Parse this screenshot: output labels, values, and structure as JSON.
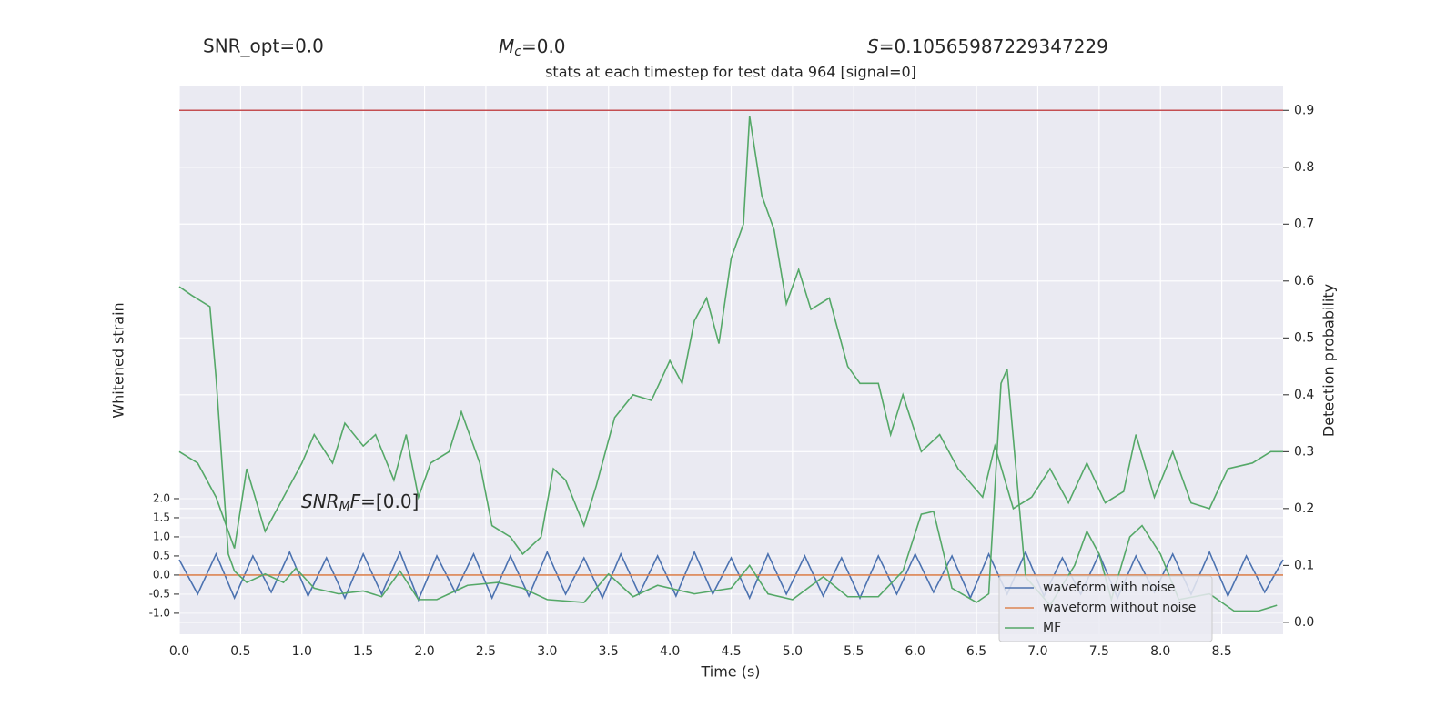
{
  "chart_data": {
    "type": "line",
    "annotations": {
      "snr_opt": {
        "text": "SNR_opt=0.0"
      },
      "mc": {
        "symbol": "M",
        "subscript": "c",
        "text": "=0.0"
      },
      "s": {
        "symbol": "S",
        "text": "=0.10565987229347229"
      },
      "snr_mf": {
        "symbol": "SNR",
        "subscript": "M",
        "symbol2": "F",
        "text": "=[0.0]"
      }
    },
    "title": "stats at each timestep for test data 964 [signal=0]",
    "xlabel": "Time (s)",
    "ylabel": "Whitened strain",
    "y2label": "Detection probability",
    "xlim": [
      0,
      9.0
    ],
    "xticks": [
      {
        "value": 0,
        "label": "0.0"
      },
      {
        "value": 0.5,
        "label": "0.5"
      },
      {
        "value": 1,
        "label": "1.0"
      },
      {
        "value": 1.5,
        "label": "1.5"
      },
      {
        "value": 2,
        "label": "2.0"
      },
      {
        "value": 2.5,
        "label": "2.5"
      },
      {
        "value": 3,
        "label": "3.0"
      },
      {
        "value": 3.5,
        "label": "3.5"
      },
      {
        "value": 4,
        "label": "4.0"
      },
      {
        "value": 4.5,
        "label": "4.5"
      },
      {
        "value": 5,
        "label": "5.0"
      },
      {
        "value": 5.5,
        "label": "5.5"
      },
      {
        "value": 6,
        "label": "6.0"
      },
      {
        "value": 6.5,
        "label": "6.5"
      },
      {
        "value": 7,
        "label": "7.0"
      },
      {
        "value": 7.5,
        "label": "7.5"
      },
      {
        "value": 8,
        "label": "8.0"
      },
      {
        "value": 8.5,
        "label": "8.5"
      }
    ],
    "ylim": [
      -1.55,
      12.79
    ],
    "yticks": [
      {
        "value": -1,
        "label": "-1.0"
      },
      {
        "value": -0.5,
        "label": "-0.5"
      },
      {
        "value": 0,
        "label": "0.0"
      },
      {
        "value": 0.5,
        "label": "0.5"
      },
      {
        "value": 1,
        "label": "1.0"
      },
      {
        "value": 1.5,
        "label": "1.5"
      },
      {
        "value": 2,
        "label": "2.0"
      }
    ],
    "y2lim": [
      -0.021,
      0.942
    ],
    "y2ticks": [
      {
        "value": 0,
        "label": "0.0"
      },
      {
        "value": 0.1,
        "label": "0.1"
      },
      {
        "value": 0.2,
        "label": "0.2"
      },
      {
        "value": 0.3,
        "label": "0.3"
      },
      {
        "value": 0.4,
        "label": "0.4"
      },
      {
        "value": 0.5,
        "label": "0.5"
      },
      {
        "value": 0.6,
        "label": "0.6"
      },
      {
        "value": 0.7,
        "label": "0.7"
      },
      {
        "value": 0.8,
        "label": "0.8"
      },
      {
        "value": 0.9,
        "label": "0.9"
      }
    ],
    "grid": true,
    "legend": "lower right",
    "series": [
      {
        "name": "waveform with noise",
        "color": "#4c72b0",
        "axis": "y",
        "x": [
          0,
          0.15,
          0.3,
          0.45,
          0.6,
          0.75,
          0.9,
          1.05,
          1.2,
          1.35,
          1.5,
          1.65,
          1.8,
          1.95,
          2.1,
          2.25,
          2.4,
          2.55,
          2.7,
          2.85,
          3.0,
          3.15,
          3.3,
          3.45,
          3.6,
          3.75,
          3.9,
          4.05,
          4.2,
          4.35,
          4.5,
          4.65,
          4.8,
          4.95,
          5.1,
          5.25,
          5.4,
          5.55,
          5.7,
          5.85,
          6.0,
          6.15,
          6.3,
          6.45,
          6.6,
          6.75,
          6.9,
          7.05,
          7.2,
          7.35,
          7.5,
          7.65,
          7.8,
          7.95,
          8.1,
          8.25,
          8.4,
          8.55,
          8.7,
          8.85,
          9.0
        ],
        "values": [
          0.4,
          -0.5,
          0.55,
          -0.6,
          0.5,
          -0.45,
          0.6,
          -0.55,
          0.45,
          -0.6,
          0.55,
          -0.5,
          0.6,
          -0.65,
          0.5,
          -0.45,
          0.55,
          -0.6,
          0.5,
          -0.55,
          0.6,
          -0.5,
          0.45,
          -0.6,
          0.55,
          -0.5,
          0.5,
          -0.55,
          0.6,
          -0.5,
          0.45,
          -0.6,
          0.55,
          -0.5,
          0.5,
          -0.55,
          0.45,
          -0.6,
          0.5,
          -0.5,
          0.55,
          -0.45,
          0.5,
          -0.6,
          0.55,
          -0.5,
          0.6,
          -0.55,
          0.45,
          -0.5,
          0.55,
          -0.6,
          0.5,
          -0.45,
          0.55,
          -0.5,
          0.6,
          -0.55,
          0.5,
          -0.45,
          0.4
        ]
      },
      {
        "name": "waveform without noise",
        "color": "#dd8452",
        "axis": "y",
        "x": [
          0,
          9.0
        ],
        "values": [
          0,
          0
        ]
      },
      {
        "name": "MF",
        "color": "#55a868",
        "axis": "y2",
        "x": [
          0,
          0.1,
          0.25,
          0.3,
          0.4,
          0.45,
          0.55,
          0.7,
          0.85,
          0.95,
          1.1,
          1.3,
          1.5,
          1.65,
          1.8,
          1.95,
          2.1,
          2.35,
          2.6,
          2.8,
          3.0,
          3.3,
          3.5,
          3.7,
          3.9,
          4.2,
          4.5,
          4.65,
          4.8,
          5.0,
          5.25,
          5.45,
          5.7,
          5.9,
          6.05,
          6.15,
          6.3,
          6.5,
          6.6,
          6.7,
          6.75,
          6.9,
          7.1,
          7.3,
          7.4,
          7.5,
          7.6,
          7.75,
          7.85,
          8.0,
          8.15,
          8.4,
          8.6,
          8.8,
          8.95
        ],
        "values": [
          0.59,
          0.575,
          0.555,
          0.43,
          0.12,
          0.09,
          0.07,
          0.085,
          0.07,
          0.095,
          0.06,
          0.05,
          0.055,
          0.045,
          0.09,
          0.04,
          0.04,
          0.065,
          0.07,
          0.06,
          0.04,
          0.035,
          0.085,
          0.045,
          0.065,
          0.05,
          0.06,
          0.1,
          0.05,
          0.04,
          0.08,
          0.045,
          0.045,
          0.09,
          0.19,
          0.195,
          0.06,
          0.035,
          0.05,
          0.42,
          0.445,
          0.08,
          0.03,
          0.1,
          0.16,
          0.12,
          0.04,
          0.15,
          0.17,
          0.12,
          0.04,
          0.05,
          0.02,
          0.02,
          0.03
        ]
      },
      {
        "color": "#55a868",
        "axis": "y2",
        "x": [
          0,
          0.15,
          0.3,
          0.45,
          0.55,
          0.7,
          0.85,
          1.0,
          1.1,
          1.25,
          1.35,
          1.5,
          1.6,
          1.75,
          1.85,
          1.95,
          2.05,
          2.2,
          2.3,
          2.45,
          2.55,
          2.7,
          2.8,
          2.95,
          3.05,
          3.15,
          3.3,
          3.4,
          3.55,
          3.7,
          3.85,
          4.0,
          4.1,
          4.2,
          4.3,
          4.4,
          4.5,
          4.6,
          4.65,
          4.75,
          4.85,
          4.95,
          5.05,
          5.15,
          5.3,
          5.45,
          5.55,
          5.7,
          5.8,
          5.9,
          6.05,
          6.2,
          6.35,
          6.55,
          6.65,
          6.8,
          6.95,
          7.1,
          7.25,
          7.4,
          7.55,
          7.7,
          7.8,
          7.95,
          8.1,
          8.25,
          8.4,
          8.55,
          8.75,
          8.9,
          9.0
        ],
        "values": [
          0.3,
          0.28,
          0.22,
          0.13,
          0.27,
          0.16,
          0.22,
          0.28,
          0.33,
          0.28,
          0.35,
          0.31,
          0.33,
          0.25,
          0.33,
          0.22,
          0.28,
          0.3,
          0.37,
          0.28,
          0.17,
          0.15,
          0.12,
          0.15,
          0.27,
          0.25,
          0.17,
          0.24,
          0.36,
          0.4,
          0.39,
          0.46,
          0.42,
          0.53,
          0.57,
          0.49,
          0.64,
          0.7,
          0.89,
          0.75,
          0.69,
          0.56,
          0.62,
          0.55,
          0.57,
          0.45,
          0.42,
          0.42,
          0.33,
          0.4,
          0.3,
          0.33,
          0.27,
          0.22,
          0.31,
          0.2,
          0.22,
          0.27,
          0.21,
          0.28,
          0.21,
          0.23,
          0.33,
          0.22,
          0.3,
          0.21,
          0.2,
          0.27,
          0.28,
          0.3,
          0.3
        ]
      },
      {
        "color": "#c44e52",
        "axis": "y2",
        "x": [
          0,
          9.0
        ],
        "values": [
          0.9,
          0.9
        ]
      }
    ]
  }
}
